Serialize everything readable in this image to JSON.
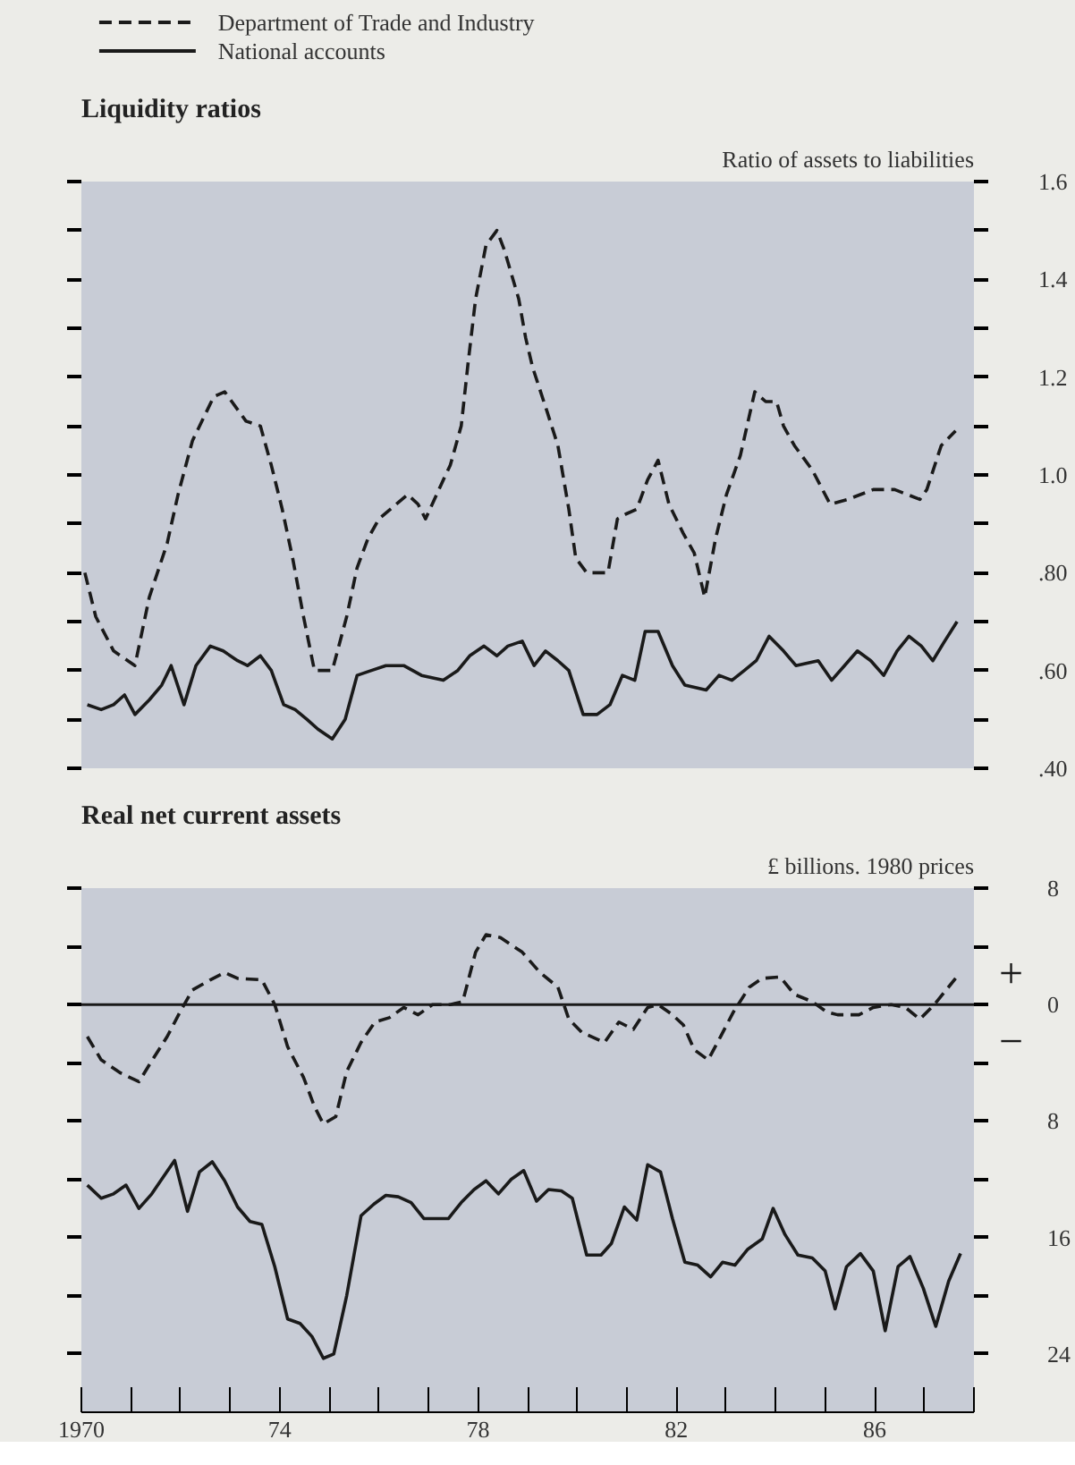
{
  "chart_data": [
    {
      "type": "line",
      "title": "Liquidity ratios",
      "ylabel": "Ratio of assets to liabilities",
      "xlim": [
        1970,
        1988
      ],
      "ylim": [
        0.4,
        1.6
      ],
      "tick_labels": "y",
      "legend": "top left",
      "grid": false,
      "yticks": [
        {
          "value": 0.4,
          "label": ".40"
        },
        {
          "value": 0.5,
          "label": null
        },
        {
          "value": 0.6,
          "label": ".60"
        },
        {
          "value": 0.7,
          "label": null
        },
        {
          "value": 0.8,
          "label": ".80"
        },
        {
          "value": 0.9,
          "label": null
        },
        {
          "value": 1.0,
          "label": "1.0"
        },
        {
          "value": 1.1,
          "label": null
        },
        {
          "value": 1.2,
          "label": "1.2"
        },
        {
          "value": 1.3,
          "label": null
        },
        {
          "value": 1.4,
          "label": "1.4"
        },
        {
          "value": 1.5,
          "label": null
        },
        {
          "value": 1.6,
          "label": "1.6"
        }
      ],
      "series": [
        {
          "name": "Department of Trade and Industry",
          "color": "#1a1a1a",
          "line_style": "dashed",
          "x": [
            1970.07,
            1970.29,
            1970.65,
            1971.08,
            1971.37,
            1971.73,
            1971.95,
            1972.24,
            1972.67,
            1972.89,
            1973.32,
            1973.61,
            1973.83,
            1974.05,
            1974.26,
            1974.48,
            1974.7,
            1975.06,
            1975.35,
            1975.56,
            1975.78,
            1976.0,
            1976.58,
            1976.79,
            1976.94,
            1977.3,
            1977.44,
            1977.66,
            1977.8,
            1977.95,
            1978.16,
            1978.38,
            1978.53,
            1978.82,
            1978.96,
            1979.1,
            1979.39,
            1979.61,
            1979.83,
            1979.97,
            1980.19,
            1980.62,
            1980.81,
            1980.98,
            1981.2,
            1981.42,
            1981.63,
            1981.85,
            1982.14,
            1982.36,
            1982.57,
            1982.79,
            1983.01,
            1983.29,
            1983.58,
            1983.8,
            1984.02,
            1984.16,
            1984.38,
            1984.74,
            1985.1,
            1985.46,
            1985.97,
            1986.4,
            1986.91,
            1987.05,
            1987.34,
            1987.63
          ],
          "values": [
            0.8,
            0.71,
            0.64,
            0.61,
            0.75,
            0.86,
            0.96,
            1.07,
            1.16,
            1.17,
            1.11,
            1.1,
            1.02,
            0.93,
            0.83,
            0.71,
            0.6,
            0.6,
            0.71,
            0.81,
            0.87,
            0.91,
            0.96,
            0.94,
            0.91,
            0.99,
            1.02,
            1.1,
            1.23,
            1.36,
            1.47,
            1.5,
            1.46,
            1.36,
            1.28,
            1.22,
            1.13,
            1.06,
            0.93,
            0.83,
            0.8,
            0.8,
            0.91,
            0.92,
            0.93,
            0.99,
            1.03,
            0.94,
            0.88,
            0.84,
            0.75,
            0.87,
            0.96,
            1.04,
            1.17,
            1.15,
            1.15,
            1.1,
            1.06,
            1.01,
            0.94,
            0.95,
            0.97,
            0.97,
            0.95,
            0.97,
            1.06,
            1.09
          ]
        },
        {
          "name": "National accounts",
          "color": "#1a1a1a",
          "line_style": "solid",
          "x": [
            1970.12,
            1970.4,
            1970.65,
            1970.87,
            1971.08,
            1971.37,
            1971.62,
            1971.81,
            1972.07,
            1972.31,
            1972.6,
            1972.86,
            1973.15,
            1973.35,
            1973.61,
            1973.83,
            1974.08,
            1974.31,
            1974.55,
            1974.77,
            1975.06,
            1975.32,
            1975.56,
            1975.85,
            1976.14,
            1976.5,
            1976.86,
            1977.3,
            1977.59,
            1977.83,
            1978.12,
            1978.38,
            1978.6,
            1978.89,
            1979.13,
            1979.36,
            1979.61,
            1979.83,
            1980.12,
            1980.4,
            1980.66,
            1980.91,
            1981.16,
            1981.37,
            1981.63,
            1981.92,
            1982.17,
            1982.6,
            1982.86,
            1983.12,
            1983.37,
            1983.61,
            1983.87,
            1984.16,
            1984.41,
            1984.86,
            1985.13,
            1985.39,
            1985.65,
            1985.92,
            1986.18,
            1986.45,
            1986.69,
            1986.94,
            1987.17,
            1987.41,
            1987.66
          ],
          "values": [
            0.53,
            0.52,
            0.53,
            0.55,
            0.51,
            0.54,
            0.57,
            0.61,
            0.53,
            0.61,
            0.65,
            0.64,
            0.62,
            0.61,
            0.63,
            0.6,
            0.53,
            0.52,
            0.5,
            0.48,
            0.46,
            0.5,
            0.59,
            0.6,
            0.61,
            0.61,
            0.59,
            0.58,
            0.6,
            0.63,
            0.65,
            0.63,
            0.65,
            0.66,
            0.61,
            0.64,
            0.62,
            0.6,
            0.51,
            0.51,
            0.53,
            0.59,
            0.58,
            0.68,
            0.68,
            0.61,
            0.57,
            0.56,
            0.59,
            0.58,
            0.6,
            0.62,
            0.67,
            0.64,
            0.61,
            0.62,
            0.58,
            0.61,
            0.64,
            0.62,
            0.59,
            0.64,
            0.67,
            0.65,
            0.62,
            0.66,
            0.7
          ]
        }
      ]
    },
    {
      "type": "line",
      "title": "Real net current assets",
      "ylabel": "£ billions. 1980 prices",
      "xlim": [
        1970,
        1988
      ],
      "ylim": [
        -28,
        8
      ],
      "grid": false,
      "annotations": [
        "+",
        "−"
      ],
      "xticks": [
        {
          "value": 1970,
          "label": "1970"
        },
        {
          "value": 1971,
          "label": null
        },
        {
          "value": 1972,
          "label": null
        },
        {
          "value": 1973,
          "label": null
        },
        {
          "value": 1974,
          "label": "74"
        },
        {
          "value": 1975,
          "label": null
        },
        {
          "value": 1976,
          "label": null
        },
        {
          "value": 1977,
          "label": null
        },
        {
          "value": 1978,
          "label": "78"
        },
        {
          "value": 1979,
          "label": null
        },
        {
          "value": 1980,
          "label": null
        },
        {
          "value": 1981,
          "label": null
        },
        {
          "value": 1982,
          "label": "82"
        },
        {
          "value": 1983,
          "label": null
        },
        {
          "value": 1984,
          "label": null
        },
        {
          "value": 1985,
          "label": null
        },
        {
          "value": 1986,
          "label": "86"
        },
        {
          "value": 1987,
          "label": null
        },
        {
          "value": 1988,
          "label": null
        }
      ],
      "yticks": [
        {
          "value": 8,
          "label": "8"
        },
        {
          "value": 4,
          "label": null
        },
        {
          "value": 0,
          "label": "0"
        },
        {
          "value": -4,
          "label": null
        },
        {
          "value": -8,
          "label": "8"
        },
        {
          "value": -12,
          "label": null
        },
        {
          "value": -16,
          "label": "16"
        },
        {
          "value": -20,
          "label": null
        },
        {
          "value": -24,
          "label": "24"
        }
      ],
      "ref_lines": [
        {
          "axis": "y",
          "value": 0,
          "color": "#1a1a1a"
        }
      ],
      "series": [
        {
          "color": "#1a1a1a",
          "line_style": "dashed",
          "x": [
            1970.12,
            1970.4,
            1970.79,
            1971.16,
            1971.45,
            1971.73,
            1971.99,
            1972.24,
            1972.6,
            1972.89,
            1973.15,
            1973.64,
            1973.9,
            1974.16,
            1974.48,
            1974.7,
            1974.88,
            1975.13,
            1975.35,
            1975.64,
            1975.92,
            1976.21,
            1976.5,
            1976.79,
            1977.08,
            1977.44,
            1977.69,
            1977.95,
            1978.16,
            1978.45,
            1978.89,
            1979.25,
            1979.61,
            1979.83,
            1980.09,
            1980.55,
            1980.84,
            1981.13,
            1981.42,
            1981.63,
            1981.92,
            1982.14,
            1982.36,
            1982.64,
            1982.89,
            1983.15,
            1983.47,
            1983.73,
            1984.09,
            1984.38,
            1984.74,
            1985.03,
            1985.25,
            1985.68,
            1985.97,
            1986.33,
            1986.62,
            1986.91,
            1987.2,
            1987.63
          ],
          "values": [
            -2.2,
            -3.8,
            -4.7,
            -5.3,
            -3.7,
            -2.2,
            -0.5,
            1.0,
            1.7,
            2.2,
            1.8,
            1.7,
            0,
            -2.9,
            -5.0,
            -7.0,
            -8.2,
            -7.7,
            -4.6,
            -2.6,
            -1.2,
            -0.9,
            -0.2,
            -0.7,
            0,
            0,
            0.2,
            3.6,
            4.8,
            4.6,
            3.6,
            2.2,
            1.2,
            -1.0,
            -1.9,
            -2.6,
            -1.2,
            -1.7,
            -0.2,
            0,
            -0.7,
            -1.4,
            -3.1,
            -3.8,
            -2.2,
            -0.5,
            1.2,
            1.8,
            1.9,
            0.7,
            0.2,
            -0.5,
            -0.7,
            -0.7,
            -0.2,
            0,
            -0.2,
            -1.0,
            0,
            1.8
          ]
        },
        {
          "color": "#1a1a1a",
          "line_style": "solid",
          "x": [
            1970.12,
            1970.4,
            1970.65,
            1970.9,
            1971.16,
            1971.42,
            1971.66,
            1971.88,
            1972.14,
            1972.38,
            1972.64,
            1972.89,
            1973.15,
            1973.4,
            1973.64,
            1973.9,
            1974.16,
            1974.41,
            1974.65,
            1974.88,
            1975.09,
            1975.35,
            1975.64,
            1975.9,
            1976.14,
            1976.39,
            1976.65,
            1976.91,
            1977.15,
            1977.4,
            1977.66,
            1977.92,
            1978.16,
            1978.41,
            1978.67,
            1978.92,
            1979.18,
            1979.42,
            1979.68,
            1979.9,
            1980.19,
            1980.48,
            1980.69,
            1980.95,
            1981.2,
            1981.42,
            1981.68,
            1981.92,
            1982.17,
            1982.43,
            1982.69,
            1982.93,
            1983.18,
            1983.44,
            1983.73,
            1983.95,
            1984.19,
            1984.45,
            1984.74,
            1985.0,
            1985.2,
            1985.43,
            1985.71,
            1985.97,
            1986.21,
            1986.47,
            1986.71,
            1986.98,
            1987.23,
            1987.49,
            1987.73
          ],
          "values": [
            -12.4,
            -13.3,
            -13.0,
            -12.4,
            -14.0,
            -13.0,
            -11.8,
            -10.7,
            -14.2,
            -11.5,
            -10.8,
            -12.1,
            -13.9,
            -14.9,
            -15.1,
            -18.0,
            -21.6,
            -21.9,
            -22.8,
            -24.3,
            -24.0,
            -20.0,
            -14.5,
            -13.7,
            -13.1,
            -13.2,
            -13.6,
            -14.7,
            -14.7,
            -14.7,
            -13.6,
            -12.7,
            -12.1,
            -13.0,
            -12.0,
            -11.4,
            -13.5,
            -12.7,
            -12.8,
            -13.3,
            -17.2,
            -17.2,
            -16.4,
            -13.9,
            -14.8,
            -11.0,
            -11.5,
            -14.7,
            -17.7,
            -17.9,
            -18.7,
            -17.7,
            -17.9,
            -16.8,
            -16.1,
            -14.0,
            -15.8,
            -17.2,
            -17.4,
            -18.3,
            -20.9,
            -18.0,
            -17.1,
            -18.3,
            -22.4,
            -18.0,
            -17.3,
            -19.5,
            -22.1,
            -19.0,
            -17.1
          ]
        }
      ]
    }
  ]
}
